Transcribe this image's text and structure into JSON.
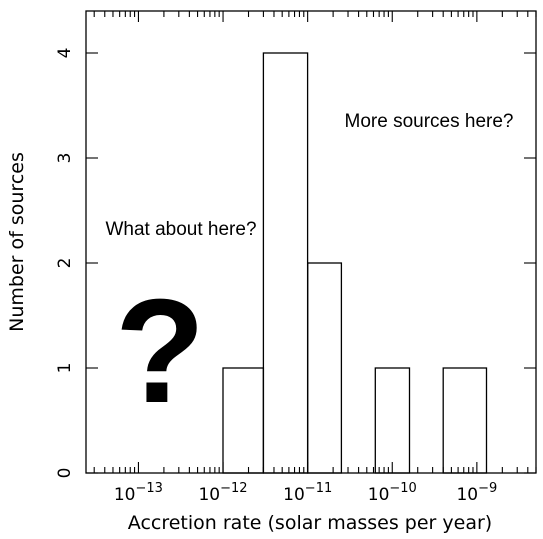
{
  "chart_data": {
    "type": "bar",
    "xlabel": "Accretion rate (solar masses per year)",
    "ylabel": "Number of sources",
    "xscale": "log",
    "xlim": [
      2.4e-14,
      5e-09
    ],
    "ylim": [
      0,
      4.4
    ],
    "grid": false,
    "x_tick_base": "10",
    "x_ticks": [
      {
        "value": 1e-13,
        "exp": "−13"
      },
      {
        "value": 1e-12,
        "exp": "−12"
      },
      {
        "value": 1e-11,
        "exp": "−11"
      },
      {
        "value": 1e-10,
        "exp": "−10"
      },
      {
        "value": 1e-09,
        "exp": "−9"
      }
    ],
    "y_ticks": [
      "0",
      "1",
      "2",
      "3",
      "4"
    ],
    "bins": [
      {
        "x0": 1e-12,
        "x1": 3e-12,
        "count": 1
      },
      {
        "x0": 3e-12,
        "x1": 1e-11,
        "count": 4
      },
      {
        "x0": 1e-11,
        "x1": 2.5e-11,
        "count": 2
      },
      {
        "x0": 2.5e-11,
        "x1": 6.3e-11,
        "count": 0
      },
      {
        "x0": 6.3e-11,
        "x1": 1.6e-10,
        "count": 1
      },
      {
        "x0": 1.6e-10,
        "x1": 4e-10,
        "count": 0
      },
      {
        "x0": 4e-10,
        "x1": 1.3e-09,
        "count": 1
      }
    ],
    "annotations": [
      {
        "id": "more",
        "text": "More sources here?"
      },
      {
        "id": "what",
        "text": "What about here?"
      },
      {
        "id": "question",
        "text": "?"
      }
    ]
  }
}
